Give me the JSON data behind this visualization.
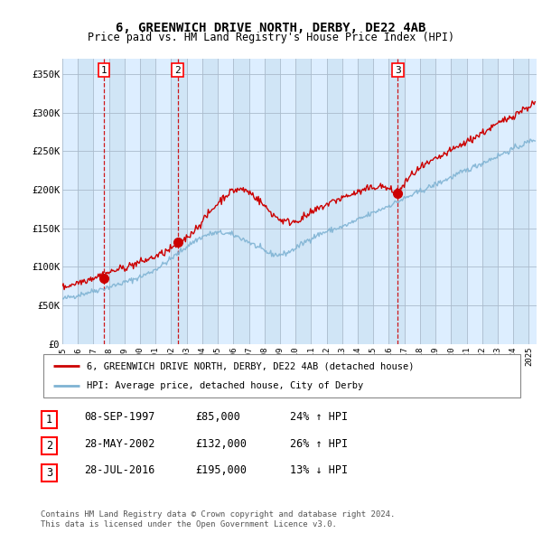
{
  "title": "6, GREENWICH DRIVE NORTH, DERBY, DE22 4AB",
  "subtitle": "Price paid vs. HM Land Registry's House Price Index (HPI)",
  "xlim": [
    1995.0,
    2025.5
  ],
  "ylim": [
    0,
    370000
  ],
  "yticks": [
    0,
    50000,
    100000,
    150000,
    200000,
    250000,
    300000,
    350000
  ],
  "ytick_labels": [
    "£0",
    "£50K",
    "£100K",
    "£150K",
    "£200K",
    "£250K",
    "£300K",
    "£350K"
  ],
  "xtick_years": [
    1995,
    1996,
    1997,
    1998,
    1999,
    2000,
    2001,
    2002,
    2003,
    2004,
    2005,
    2006,
    2007,
    2008,
    2009,
    2010,
    2011,
    2012,
    2013,
    2014,
    2015,
    2016,
    2017,
    2018,
    2019,
    2020,
    2021,
    2022,
    2023,
    2024,
    2025
  ],
  "sale_dates": [
    1997.69,
    2002.41,
    2016.58
  ],
  "sale_prices": [
    85000,
    132000,
    195000
  ],
  "sale_labels": [
    "1",
    "2",
    "3"
  ],
  "legend_line1": "6, GREENWICH DRIVE NORTH, DERBY, DE22 4AB (detached house)",
  "legend_line2": "HPI: Average price, detached house, City of Derby",
  "table_rows": [
    [
      "1",
      "08-SEP-1997",
      "£85,000",
      "24% ↑ HPI"
    ],
    [
      "2",
      "28-MAY-2002",
      "£132,000",
      "26% ↑ HPI"
    ],
    [
      "3",
      "28-JUL-2016",
      "£195,000",
      "13% ↓ HPI"
    ]
  ],
  "footnote1": "Contains HM Land Registry data © Crown copyright and database right 2024.",
  "footnote2": "This data is licensed under the Open Government Licence v3.0.",
  "red_color": "#cc0000",
  "blue_color": "#7fb3d3",
  "bg_color": "#ddeeff",
  "bg_color_alt": "#c8dff0",
  "grid_color": "#aabbcc",
  "vline_color": "#cc0000",
  "title_fontsize": 10,
  "subtitle_fontsize": 8.5
}
